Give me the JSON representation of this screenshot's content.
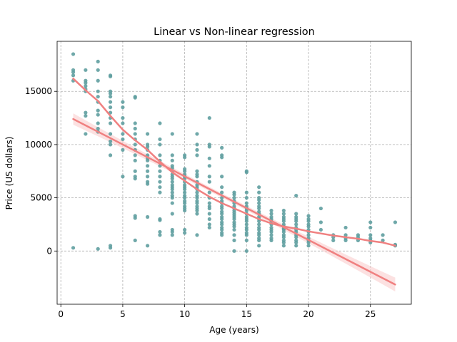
{
  "chart_data": {
    "type": "scatter",
    "title": "Linear vs Non-linear regression",
    "xlabel": "Age (years)",
    "ylabel": "Price (US dollars)",
    "xlim": [
      -0.3,
      28.3
    ],
    "ylim": [
      -5000,
      19700
    ],
    "xticks": [
      0,
      5,
      10,
      15,
      20,
      25
    ],
    "yticks": [
      0,
      5000,
      10000,
      15000
    ],
    "ytick_labels": [
      "0",
      "5000",
      "10000",
      "15000"
    ],
    "grid": true,
    "colors": {
      "points": "#5f9ea0",
      "lines": "#f08080",
      "band": "#f9c9c9",
      "grid": "#b0b0b0"
    },
    "points": [
      [
        1,
        18500
      ],
      [
        1,
        17000
      ],
      [
        1,
        16500
      ],
      [
        1,
        16000
      ],
      [
        1,
        300
      ],
      [
        1,
        16800
      ],
      [
        2,
        17000
      ],
      [
        2,
        16000
      ],
      [
        2,
        15800
      ],
      [
        2,
        15500
      ],
      [
        2,
        15000
      ],
      [
        2,
        13000
      ],
      [
        2,
        12700
      ],
      [
        2,
        11000
      ],
      [
        2,
        15200
      ],
      [
        3,
        17800
      ],
      [
        3,
        17000
      ],
      [
        3,
        16000
      ],
      [
        3,
        15000
      ],
      [
        3,
        14500
      ],
      [
        3,
        14000
      ],
      [
        3,
        13200
      ],
      [
        3,
        12800
      ],
      [
        3,
        12000
      ],
      [
        3,
        11500
      ],
      [
        3,
        11200
      ],
      [
        3,
        200
      ],
      [
        4,
        16500
      ],
      [
        4,
        15000
      ],
      [
        4,
        14800
      ],
      [
        4,
        14500
      ],
      [
        4,
        14000
      ],
      [
        4,
        13500
      ],
      [
        4,
        13000
      ],
      [
        4,
        12500
      ],
      [
        4,
        12000
      ],
      [
        4,
        11000
      ],
      [
        4,
        10300
      ],
      [
        4,
        10000
      ],
      [
        4,
        9000
      ],
      [
        4,
        500
      ],
      [
        4,
        300
      ],
      [
        4,
        16400
      ],
      [
        5,
        14000
      ],
      [
        5,
        13500
      ],
      [
        5,
        12500
      ],
      [
        5,
        12000
      ],
      [
        5,
        11000
      ],
      [
        5,
        10500
      ],
      [
        5,
        9500
      ],
      [
        5,
        7000
      ],
      [
        6,
        14500
      ],
      [
        6,
        14400
      ],
      [
        6,
        12000
      ],
      [
        6,
        11500
      ],
      [
        6,
        11000
      ],
      [
        6,
        10500
      ],
      [
        6,
        10000
      ],
      [
        6,
        9500
      ],
      [
        6,
        9000
      ],
      [
        6,
        8500
      ],
      [
        6,
        7500
      ],
      [
        6,
        7000
      ],
      [
        6,
        6800
      ],
      [
        6,
        3300
      ],
      [
        6,
        3100
      ],
      [
        6,
        1000
      ],
      [
        7,
        11000
      ],
      [
        7,
        10000
      ],
      [
        7,
        9800
      ],
      [
        7,
        9500
      ],
      [
        7,
        9000
      ],
      [
        7,
        8700
      ],
      [
        7,
        8500
      ],
      [
        7,
        8000
      ],
      [
        7,
        7500
      ],
      [
        7,
        7000
      ],
      [
        7,
        6500
      ],
      [
        7,
        6300
      ],
      [
        7,
        3200
      ],
      [
        7,
        500
      ],
      [
        8,
        12000
      ],
      [
        8,
        10500
      ],
      [
        8,
        10000
      ],
      [
        8,
        9000
      ],
      [
        8,
        8500
      ],
      [
        8,
        8000
      ],
      [
        8,
        7500
      ],
      [
        8,
        7000
      ],
      [
        8,
        6500
      ],
      [
        8,
        6000
      ],
      [
        8,
        5500
      ],
      [
        8,
        3000
      ],
      [
        8,
        2900
      ],
      [
        8,
        1800
      ],
      [
        8,
        1500
      ],
      [
        9,
        11000
      ],
      [
        9,
        9000
      ],
      [
        9,
        8500
      ],
      [
        9,
        8000
      ],
      [
        9,
        7800
      ],
      [
        9,
        7500
      ],
      [
        9,
        7200
      ],
      [
        9,
        7000
      ],
      [
        9,
        6800
      ],
      [
        9,
        6500
      ],
      [
        9,
        6200
      ],
      [
        9,
        6000
      ],
      [
        9,
        5800
      ],
      [
        9,
        5500
      ],
      [
        9,
        5200
      ],
      [
        9,
        5000
      ],
      [
        9,
        4500
      ],
      [
        9,
        3500
      ],
      [
        9,
        2000
      ],
      [
        9,
        1800
      ],
      [
        9,
        1500
      ],
      [
        10,
        9000
      ],
      [
        10,
        8800
      ],
      [
        10,
        7700
      ],
      [
        10,
        7500
      ],
      [
        10,
        7200
      ],
      [
        10,
        7000
      ],
      [
        10,
        6800
      ],
      [
        10,
        6500
      ],
      [
        10,
        6200
      ],
      [
        10,
        6000
      ],
      [
        10,
        5800
      ],
      [
        10,
        5500
      ],
      [
        10,
        5200
      ],
      [
        10,
        5000
      ],
      [
        10,
        4700
      ],
      [
        10,
        4500
      ],
      [
        10,
        4200
      ],
      [
        10,
        4000
      ],
      [
        10,
        3800
      ],
      [
        10,
        2000
      ],
      [
        10,
        1700
      ],
      [
        11,
        11000
      ],
      [
        11,
        10000
      ],
      [
        11,
        9500
      ],
      [
        11,
        9000
      ],
      [
        11,
        7500
      ],
      [
        11,
        7200
      ],
      [
        11,
        7000
      ],
      [
        11,
        6500
      ],
      [
        11,
        6200
      ],
      [
        11,
        6000
      ],
      [
        11,
        5800
      ],
      [
        11,
        5500
      ],
      [
        11,
        5200
      ],
      [
        11,
        5000
      ],
      [
        11,
        4700
      ],
      [
        11,
        4500
      ],
      [
        11,
        4200
      ],
      [
        11,
        4000
      ],
      [
        11,
        3800
      ],
      [
        11,
        3500
      ],
      [
        11,
        1500
      ],
      [
        12,
        12500
      ],
      [
        12,
        10000
      ],
      [
        12,
        9800
      ],
      [
        12,
        8700
      ],
      [
        12,
        8000
      ],
      [
        12,
        7000
      ],
      [
        12,
        6500
      ],
      [
        12,
        5500
      ],
      [
        12,
        5000
      ],
      [
        12,
        4500
      ],
      [
        12,
        4200
      ],
      [
        12,
        4000
      ],
      [
        12,
        3500
      ],
      [
        12,
        3000
      ],
      [
        12,
        2500
      ],
      [
        12,
        2200
      ],
      [
        13,
        9700
      ],
      [
        13,
        9000
      ],
      [
        13,
        8800
      ],
      [
        13,
        7000
      ],
      [
        13,
        6000
      ],
      [
        13,
        5500
      ],
      [
        13,
        5000
      ],
      [
        13,
        4700
      ],
      [
        13,
        4500
      ],
      [
        13,
        4200
      ],
      [
        13,
        4000
      ],
      [
        13,
        3700
      ],
      [
        13,
        3500
      ],
      [
        13,
        3200
      ],
      [
        13,
        3000
      ],
      [
        13,
        2700
      ],
      [
        13,
        2500
      ],
      [
        13,
        2200
      ],
      [
        13,
        2000
      ],
      [
        13,
        1700
      ],
      [
        13,
        1500
      ],
      [
        14,
        5500
      ],
      [
        14,
        5300
      ],
      [
        14,
        5000
      ],
      [
        14,
        4700
      ],
      [
        14,
        4500
      ],
      [
        14,
        4200
      ],
      [
        14,
        4000
      ],
      [
        14,
        3800
      ],
      [
        14,
        3600
      ],
      [
        14,
        3400
      ],
      [
        14,
        3200
      ],
      [
        14,
        3000
      ],
      [
        14,
        2700
      ],
      [
        14,
        2500
      ],
      [
        14,
        2300
      ],
      [
        14,
        2000
      ],
      [
        14,
        1500
      ],
      [
        14,
        1000
      ],
      [
        14,
        0
      ],
      [
        15,
        7500
      ],
      [
        15,
        7400
      ],
      [
        15,
        5500
      ],
      [
        15,
        5000
      ],
      [
        15,
        4500
      ],
      [
        15,
        4200
      ],
      [
        15,
        4000
      ],
      [
        15,
        3800
      ],
      [
        15,
        3500
      ],
      [
        15,
        3200
      ],
      [
        15,
        3000
      ],
      [
        15,
        2800
      ],
      [
        15,
        2500
      ],
      [
        15,
        2200
      ],
      [
        15,
        2000
      ],
      [
        15,
        1700
      ],
      [
        15,
        1500
      ],
      [
        15,
        1000
      ],
      [
        15,
        0
      ],
      [
        16,
        6000
      ],
      [
        16,
        5500
      ],
      [
        16,
        5000
      ],
      [
        16,
        4800
      ],
      [
        16,
        4500
      ],
      [
        16,
        4200
      ],
      [
        16,
        4000
      ],
      [
        16,
        3700
      ],
      [
        16,
        3500
      ],
      [
        16,
        3200
      ],
      [
        16,
        3000
      ],
      [
        16,
        2800
      ],
      [
        16,
        2500
      ],
      [
        16,
        2200
      ],
      [
        16,
        2000
      ],
      [
        16,
        1700
      ],
      [
        16,
        1500
      ],
      [
        16,
        1200
      ],
      [
        16,
        1000
      ],
      [
        16,
        500
      ],
      [
        17,
        3800
      ],
      [
        17,
        3500
      ],
      [
        17,
        3200
      ],
      [
        17,
        3000
      ],
      [
        17,
        2800
      ],
      [
        17,
        2500
      ],
      [
        17,
        2200
      ],
      [
        17,
        2000
      ],
      [
        17,
        1800
      ],
      [
        17,
        1500
      ],
      [
        17,
        1200
      ],
      [
        17,
        1000
      ],
      [
        18,
        3800
      ],
      [
        18,
        3500
      ],
      [
        18,
        3200
      ],
      [
        18,
        3000
      ],
      [
        18,
        2800
      ],
      [
        18,
        2500
      ],
      [
        18,
        2300
      ],
      [
        18,
        2100
      ],
      [
        18,
        2000
      ],
      [
        18,
        1800
      ],
      [
        18,
        1500
      ],
      [
        18,
        1300
      ],
      [
        18,
        1000
      ],
      [
        18,
        800
      ],
      [
        18,
        500
      ],
      [
        19,
        5200
      ],
      [
        19,
        3500
      ],
      [
        19,
        3200
      ],
      [
        19,
        3000
      ],
      [
        19,
        2800
      ],
      [
        19,
        2500
      ],
      [
        19,
        2200
      ],
      [
        19,
        2000
      ],
      [
        19,
        1800
      ],
      [
        19,
        1500
      ],
      [
        19,
        1300
      ],
      [
        19,
        1000
      ],
      [
        19,
        800
      ],
      [
        19,
        500
      ],
      [
        20,
        3300
      ],
      [
        20,
        3000
      ],
      [
        20,
        2800
      ],
      [
        20,
        2500
      ],
      [
        20,
        2300
      ],
      [
        20,
        2000
      ],
      [
        20,
        1800
      ],
      [
        20,
        1500
      ],
      [
        20,
        1200
      ],
      [
        20,
        1000
      ],
      [
        20,
        800
      ],
      [
        20,
        500
      ],
      [
        21,
        4000
      ],
      [
        21,
        2700
      ],
      [
        21,
        2000
      ],
      [
        22,
        1500
      ],
      [
        22,
        1300
      ],
      [
        22,
        1000
      ],
      [
        23,
        2200
      ],
      [
        23,
        1500
      ],
      [
        23,
        1200
      ],
      [
        23,
        1000
      ],
      [
        24,
        1500
      ],
      [
        24,
        1300
      ],
      [
        24,
        1000
      ],
      [
        25,
        2700
      ],
      [
        25,
        2200
      ],
      [
        25,
        1500
      ],
      [
        25,
        1200
      ],
      [
        25,
        1000
      ],
      [
        25,
        800
      ],
      [
        26,
        1500
      ],
      [
        26,
        1000
      ],
      [
        27,
        2700
      ],
      [
        27,
        600
      ],
      [
        27,
        500
      ]
    ],
    "series": [
      {
        "type": "line",
        "x": [
          1,
          27
        ],
        "y": [
          12400,
          -3150
        ]
      },
      {
        "type": "curve",
        "x": [
          1,
          2,
          3,
          4,
          5,
          6,
          7,
          8,
          9,
          10,
          11,
          12,
          13,
          14,
          15,
          16,
          17,
          18,
          19,
          20,
          21,
          22,
          23,
          24,
          25,
          26,
          27
        ],
        "y": [
          16200,
          15100,
          14100,
          12700,
          11400,
          10400,
          9500,
          8400,
          7400,
          6600,
          5800,
          5100,
          4500,
          4000,
          3500,
          3000,
          2600,
          2300,
          2100,
          1850,
          1650,
          1450,
          1300,
          1150,
          950,
          800,
          500
        ]
      }
    ]
  }
}
